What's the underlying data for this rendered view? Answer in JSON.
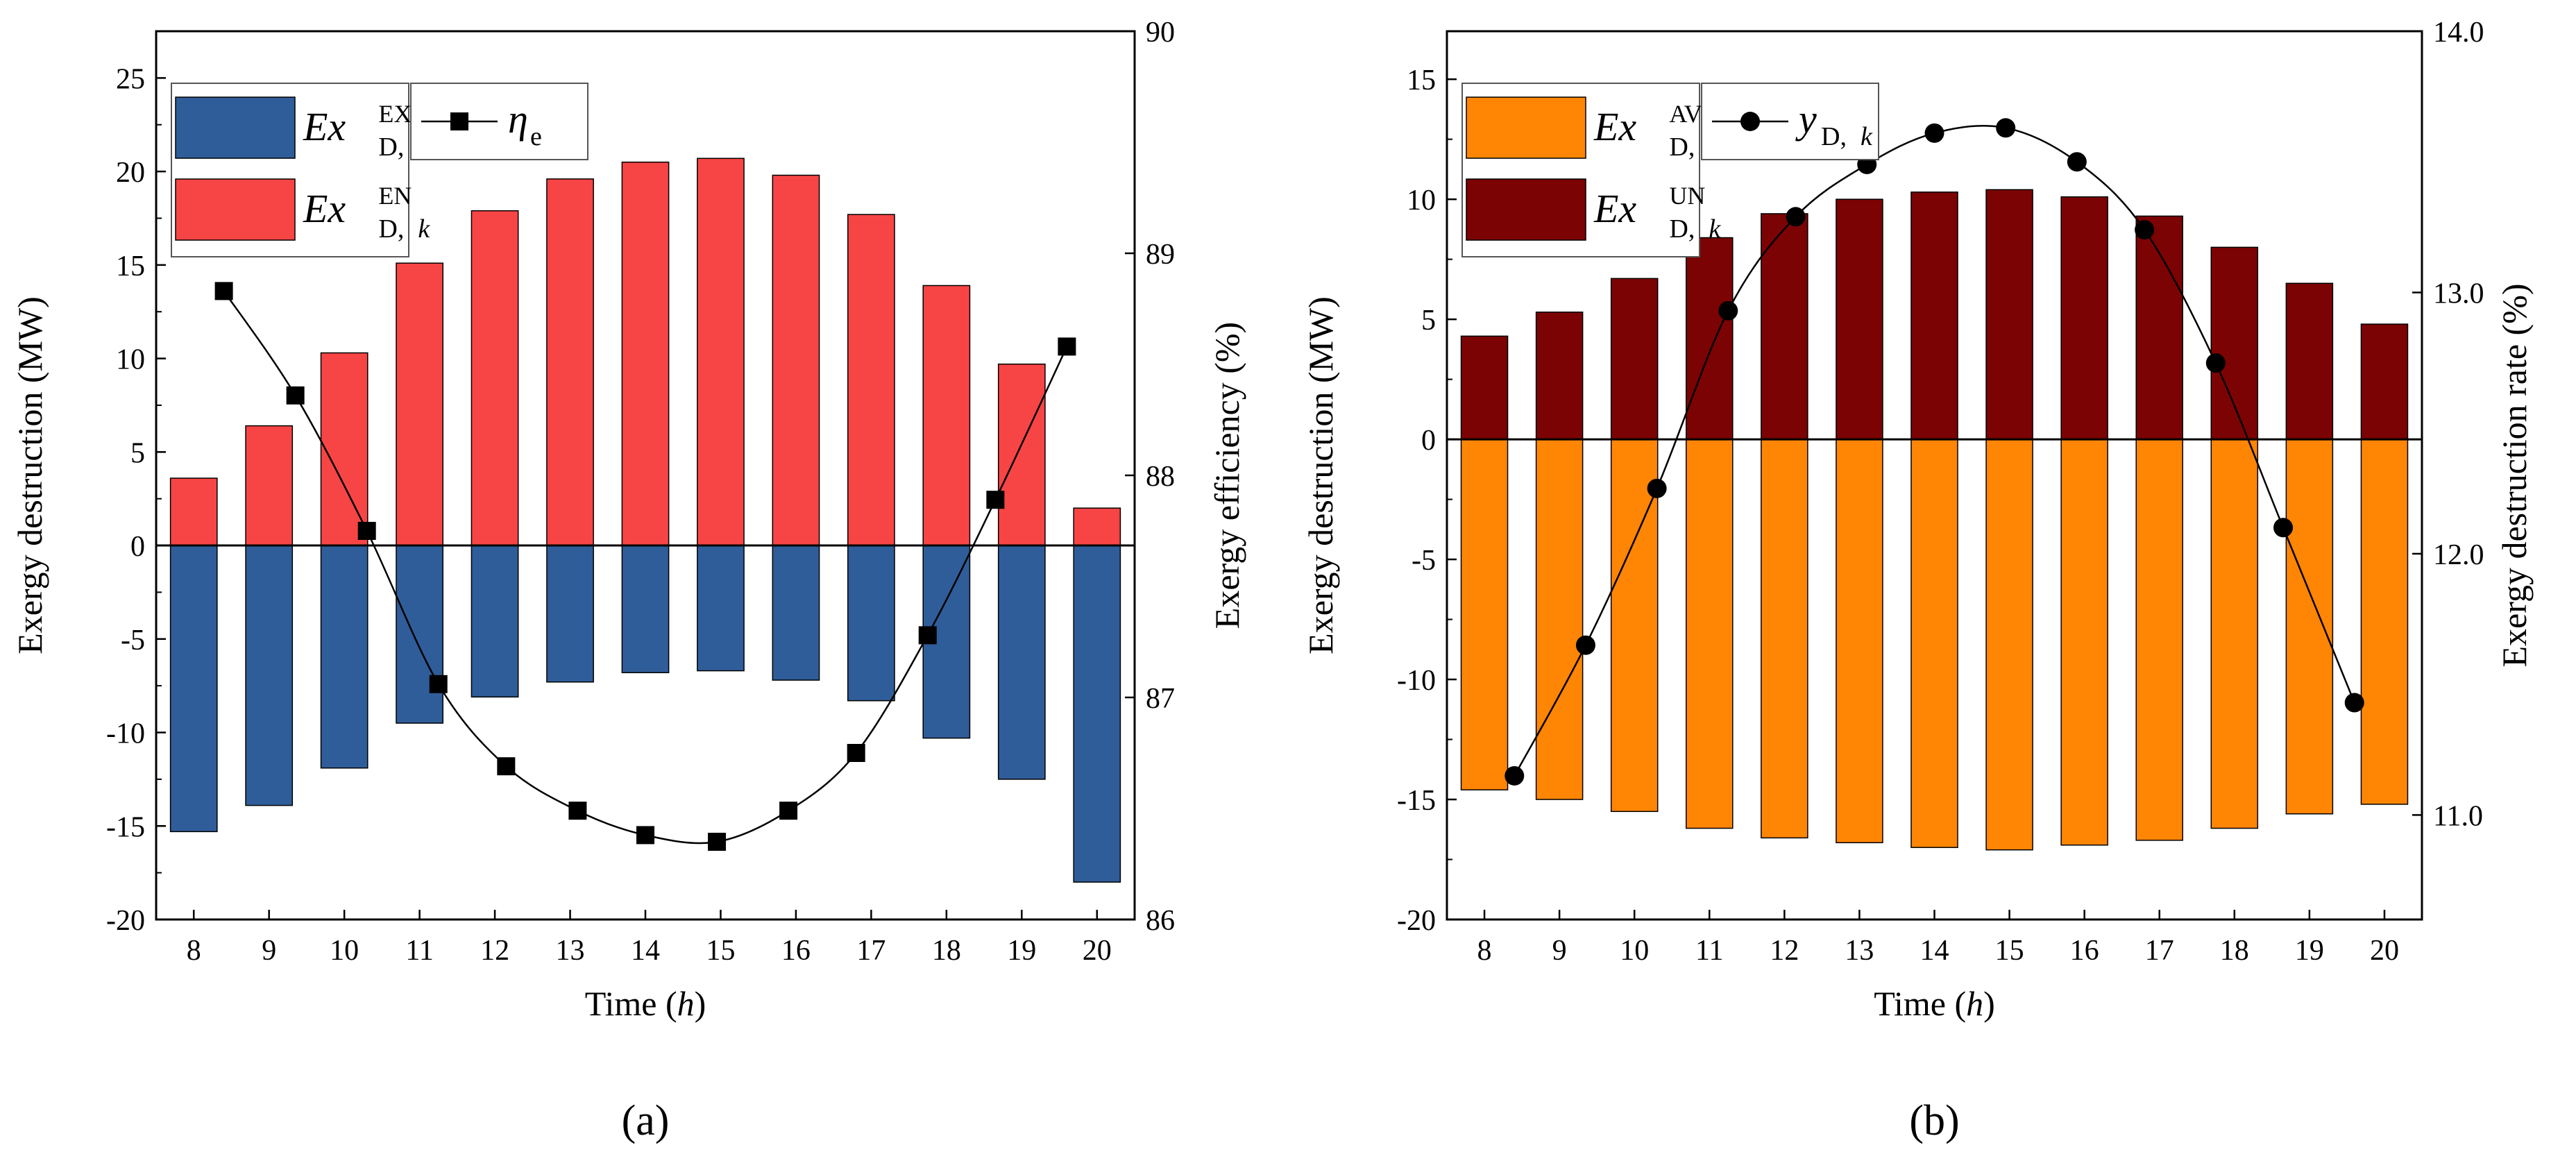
{
  "chart_data": [
    {
      "panel_label": "(a)",
      "type": "bar",
      "categories": [
        "8",
        "9",
        "10",
        "11",
        "12",
        "13",
        "14",
        "15",
        "16",
        "17",
        "18",
        "19",
        "20"
      ],
      "xlabel": "Time (h)",
      "xlabel_main": "Time (",
      "xlabel_var": "h",
      "xlabel_close": ")",
      "ylabel": "Exergy destruction (MW)",
      "y2label": "Exergy efficiency (%)",
      "ylim": [
        -20,
        27.5
      ],
      "yticks": [
        -20,
        -15,
        -10,
        -5,
        0,
        5,
        10,
        15,
        20,
        25
      ],
      "y2lim": [
        86,
        90
      ],
      "y2ticks": [
        86,
        87,
        88,
        89,
        90
      ],
      "series": [
        {
          "name": "Ex_D,k^EX",
          "base": "Ex",
          "sub": "D,",
          "sub_italic": "k",
          "sup": "EX",
          "color": "#2F5D99",
          "values": [
            -15.3,
            -13.9,
            -11.9,
            -9.5,
            -8.1,
            -7.3,
            -6.8,
            -6.7,
            -7.2,
            -8.3,
            -10.3,
            -12.5,
            -18.0
          ]
        },
        {
          "name": "Ex_D,k^EN",
          "base": "Ex",
          "sub": "D,",
          "sub_italic": "k",
          "sup": "EN",
          "color": "#F74545",
          "values": [
            3.6,
            6.4,
            10.3,
            15.1,
            17.9,
            19.6,
            20.5,
            20.7,
            19.8,
            17.7,
            13.9,
            9.7,
            2.0
          ]
        }
      ],
      "line_series": {
        "name": "η_e",
        "base": "η",
        "sub": "e",
        "axis": "right",
        "marker": "square",
        "x": [
          8.4,
          9.35,
          10.3,
          11.25,
          12.15,
          13.1,
          14.0,
          14.95,
          15.9,
          16.8,
          17.75,
          18.65,
          19.6
        ],
        "values": [
          88.83,
          88.36,
          87.75,
          87.06,
          86.69,
          86.49,
          86.38,
          86.35,
          86.49,
          86.75,
          87.28,
          87.89,
          88.58
        ]
      }
    },
    {
      "panel_label": "(b)",
      "type": "bar",
      "categories": [
        "8",
        "9",
        "10",
        "11",
        "12",
        "13",
        "14",
        "15",
        "16",
        "17",
        "18",
        "19",
        "20"
      ],
      "xlabel": "Time (h)",
      "xlabel_main": "Time (",
      "xlabel_var": "h",
      "xlabel_close": ")",
      "ylabel": "Exergy destruction (MW)",
      "y2label": "Exergy destruction rate (%)",
      "ylim": [
        -20,
        17
      ],
      "yticks": [
        -20,
        -15,
        -10,
        -5,
        0,
        5,
        10,
        15
      ],
      "y2lim": [
        10.6,
        14.0
      ],
      "y2ticks": [
        11.0,
        12.0,
        13.0,
        14.0
      ],
      "y2tick_labels": [
        "11.0",
        "12.0",
        "13.0",
        "14.0"
      ],
      "series": [
        {
          "name": "Ex_D,k^AV",
          "base": "Ex",
          "sub": "D,",
          "sub_italic": "k",
          "sup": "AV",
          "color": "#FF8505",
          "values": [
            -14.6,
            -15.0,
            -15.5,
            -16.2,
            -16.6,
            -16.8,
            -17.0,
            -17.1,
            -16.9,
            -16.7,
            -16.2,
            -15.6,
            -15.2
          ]
        },
        {
          "name": "Ex_D,k^UN",
          "base": "Ex",
          "sub": "D,",
          "sub_italic": "k",
          "sup": "UN",
          "color": "#7B0303",
          "values": [
            4.3,
            5.3,
            6.7,
            8.4,
            9.4,
            10.0,
            10.3,
            10.4,
            10.1,
            9.3,
            8.0,
            6.5,
            4.8
          ]
        }
      ],
      "line_series": {
        "name": "y_D,k",
        "base": "y",
        "sub": "D,",
        "sub_italic": "k",
        "axis": "right",
        "marker": "circle",
        "x": [
          8.4,
          9.35,
          10.3,
          11.25,
          12.15,
          13.1,
          14.0,
          14.95,
          15.9,
          16.8,
          17.75,
          18.65,
          19.6
        ],
        "values": [
          11.15,
          11.65,
          12.25,
          12.93,
          13.29,
          13.49,
          13.61,
          13.63,
          13.5,
          13.24,
          12.73,
          12.1,
          11.43
        ]
      }
    }
  ]
}
